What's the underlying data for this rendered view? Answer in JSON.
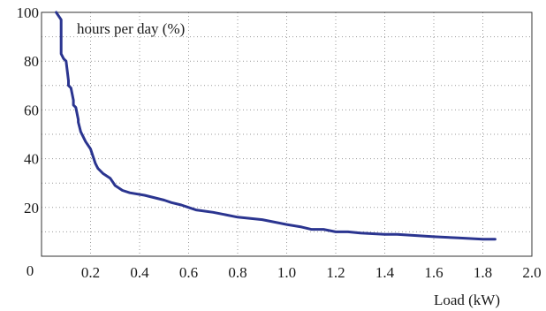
{
  "chart_data": {
    "type": "line",
    "title": "",
    "ylabel": "hours per day (%)",
    "xlabel": "Load (kW)",
    "xlim": [
      0,
      2.0
    ],
    "ylim": [
      0,
      100
    ],
    "x_ticks": [
      "0",
      "0.2",
      "0.4",
      "0.6",
      "0.8",
      "1.0",
      "1.2",
      "1.4",
      "1.6",
      "1.8",
      "2.0"
    ],
    "y_ticks": [
      "20",
      "40",
      "60",
      "80",
      "100"
    ],
    "grid": "dotted",
    "series_color": "#2b3590",
    "series": [
      {
        "x": [
          0.06,
          0.08,
          0.08,
          0.09,
          0.1,
          0.11,
          0.11,
          0.12,
          0.13,
          0.13,
          0.14,
          0.15,
          0.15,
          0.16,
          0.18,
          0.2,
          0.22,
          0.23,
          0.25,
          0.28,
          0.3,
          0.33,
          0.36,
          0.42,
          0.5,
          0.53,
          0.57,
          0.6,
          0.63,
          0.7,
          0.8,
          0.9,
          1.0,
          1.06,
          1.1,
          1.15,
          1.2,
          1.25,
          1.3,
          1.4,
          1.45,
          1.6,
          1.7,
          1.8,
          1.85
        ],
        "y": [
          100,
          97,
          83,
          81,
          80,
          72,
          70,
          69,
          64,
          62,
          61,
          56,
          55,
          51,
          47,
          44,
          38,
          36,
          34,
          32,
          29,
          27,
          26,
          25,
          23,
          22,
          21,
          20,
          19,
          18,
          16,
          15,
          13,
          12,
          11,
          11,
          10,
          10,
          9.5,
          9,
          9,
          8,
          7.5,
          7,
          7
        ]
      }
    ]
  }
}
